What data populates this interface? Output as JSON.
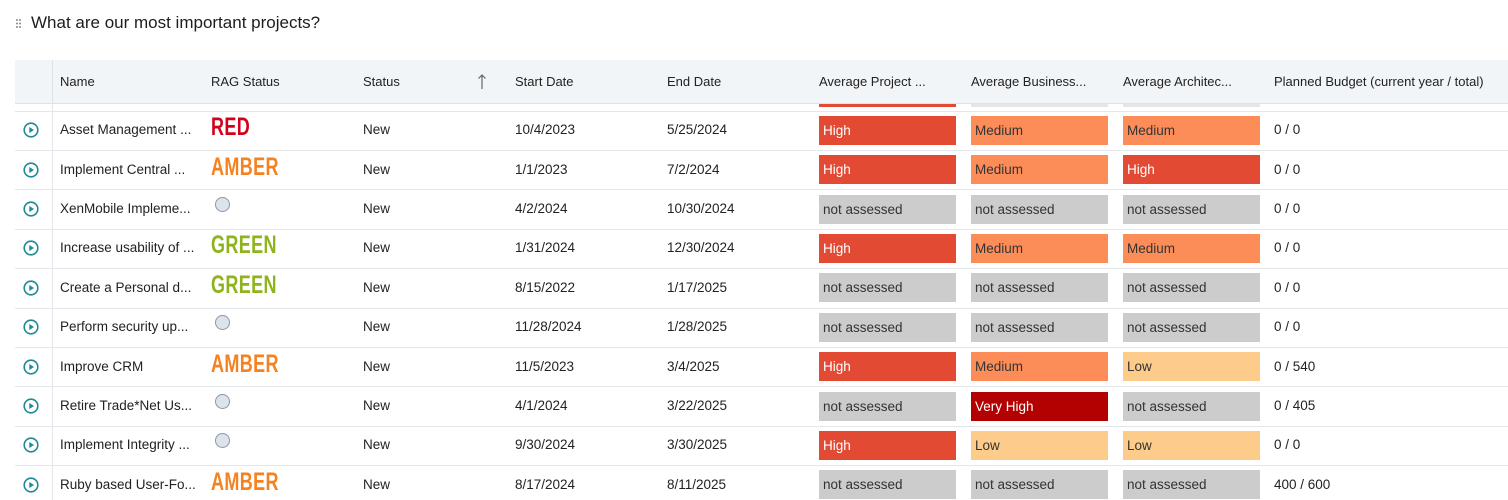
{
  "header": {
    "title": "What are our most important projects?"
  },
  "table": {
    "columns": [
      "Name",
      "RAG Status",
      "Status",
      "Start Date",
      "End Date",
      "Average Project ...",
      "Average Business...",
      "Average Architec...",
      "Planned Budget (current year / total)"
    ],
    "rows": [
      {
        "name": "Asset Management ...",
        "rag": {
          "label": "RED",
          "color": "#d0021b"
        },
        "status": "New",
        "start": "10/4/2023",
        "end": "5/25/2024",
        "project": {
          "label": "High",
          "color": "#e24a33"
        },
        "business": {
          "label": "Medium",
          "color": "#fc8d59"
        },
        "architecture": {
          "label": "Medium",
          "color": "#fc8d59"
        },
        "budget": "0 / 0"
      },
      {
        "name": "Implement Central ...",
        "rag": {
          "label": "AMBER",
          "color": "#f58220"
        },
        "status": "New",
        "start": "1/1/2023",
        "end": "7/2/2024",
        "project": {
          "label": "High",
          "color": "#e24a33"
        },
        "business": {
          "label": "Medium",
          "color": "#fc8d59"
        },
        "architecture": {
          "label": "High",
          "color": "#e24a33"
        },
        "budget": "0 / 0"
      },
      {
        "name": "XenMobile Impleme...",
        "rag": null,
        "status": "New",
        "start": "4/2/2024",
        "end": "10/30/2024",
        "project": {
          "label": "not assessed",
          "color": "#cccccc"
        },
        "business": {
          "label": "not assessed",
          "color": "#cccccc"
        },
        "architecture": {
          "label": "not assessed",
          "color": "#cccccc"
        },
        "budget": "0 / 0"
      },
      {
        "name": "Increase usability of ...",
        "rag": {
          "label": "GREEN",
          "color": "#8fb31b"
        },
        "status": "New",
        "start": "1/31/2024",
        "end": "12/30/2024",
        "project": {
          "label": "High",
          "color": "#e24a33"
        },
        "business": {
          "label": "Medium",
          "color": "#fc8d59"
        },
        "architecture": {
          "label": "Medium",
          "color": "#fc8d59"
        },
        "budget": "0 / 0"
      },
      {
        "name": "Create a Personal d...",
        "rag": {
          "label": "GREEN",
          "color": "#8fb31b"
        },
        "status": "New",
        "start": "8/15/2022",
        "end": "1/17/2025",
        "project": {
          "label": "not assessed",
          "color": "#cccccc"
        },
        "business": {
          "label": "not assessed",
          "color": "#cccccc"
        },
        "architecture": {
          "label": "not assessed",
          "color": "#cccccc"
        },
        "budget": "0 / 0"
      },
      {
        "name": "Perform security up...",
        "rag": null,
        "status": "New",
        "start": "11/28/2024",
        "end": "1/28/2025",
        "project": {
          "label": "not assessed",
          "color": "#cccccc"
        },
        "business": {
          "label": "not assessed",
          "color": "#cccccc"
        },
        "architecture": {
          "label": "not assessed",
          "color": "#cccccc"
        },
        "budget": "0 / 0"
      },
      {
        "name": "Improve CRM",
        "rag": {
          "label": "AMBER",
          "color": "#f58220"
        },
        "status": "New",
        "start": "11/5/2023",
        "end": "3/4/2025",
        "project": {
          "label": "High",
          "color": "#e24a33"
        },
        "business": {
          "label": "Medium",
          "color": "#fc8d59"
        },
        "architecture": {
          "label": "Low",
          "color": "#fdcc8a"
        },
        "budget": "0 / 540"
      },
      {
        "name": "Retire Trade*Net Us...",
        "rag": null,
        "status": "New",
        "start": "4/1/2024",
        "end": "3/22/2025",
        "project": {
          "label": "not assessed",
          "color": "#cccccc"
        },
        "business": {
          "label": "Very High",
          "color": "#b30000"
        },
        "architecture": {
          "label": "not assessed",
          "color": "#cccccc"
        },
        "budget": "0 / 405"
      },
      {
        "name": "Implement Integrity ...",
        "rag": null,
        "status": "New",
        "start": "9/30/2024",
        "end": "3/30/2025",
        "project": {
          "label": "High",
          "color": "#e24a33"
        },
        "business": {
          "label": "Low",
          "color": "#fdcc8a"
        },
        "architecture": {
          "label": "Low",
          "color": "#fdcc8a"
        },
        "budget": "0 / 0"
      },
      {
        "name": "Ruby based User-Fo...",
        "rag": {
          "label": "AMBER",
          "color": "#f58220"
        },
        "status": "New",
        "start": "8/17/2024",
        "end": "8/11/2025",
        "project": {
          "label": "not assessed",
          "color": "#cccccc"
        },
        "business": {
          "label": "not assessed",
          "color": "#cccccc"
        },
        "architecture": {
          "label": "not assessed",
          "color": "#cccccc"
        },
        "budget": "400 / 600"
      }
    ]
  }
}
